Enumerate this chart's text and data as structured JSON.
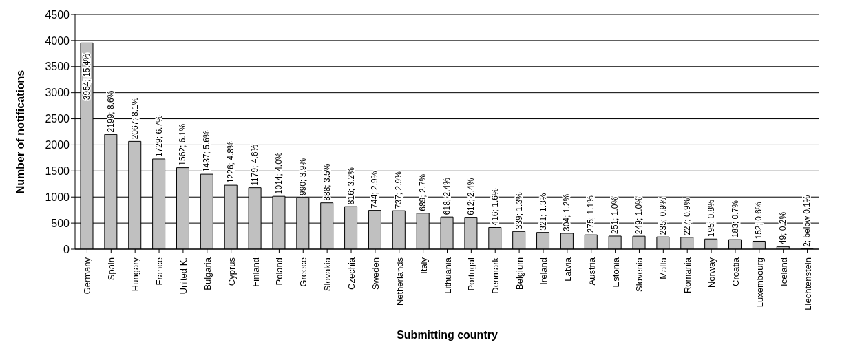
{
  "chart_data": {
    "type": "bar",
    "xlabel": "Submitting country",
    "ylabel": "Number of notifications",
    "categories": [
      "Germany",
      "Spain",
      "Hungary",
      "France",
      "United K.",
      "Bulgaria",
      "Cyprus",
      "Finland",
      "Poland",
      "Greece",
      "Slovakia",
      "Czechia",
      "Sweden",
      "Netherlands",
      "Italy",
      "Lithuania",
      "Portugal",
      "Denmark",
      "Belgium",
      "Ireland",
      "Latvia",
      "Austria",
      "Estonia",
      "Slovenia",
      "Malta",
      "Romania",
      "Norway",
      "Croatia",
      "Luxembourg",
      "Iceland",
      "Liechtenstein"
    ],
    "values": [
      3954,
      2199,
      2067,
      1729,
      1562,
      1437,
      1226,
      1179,
      1014,
      990,
      888,
      816,
      744,
      737,
      689,
      618,
      612,
      416,
      339,
      321,
      304,
      275,
      251,
      249,
      235,
      227,
      195,
      183,
      152,
      49,
      2
    ],
    "value_labels": [
      "3954; 15.4%",
      "2199; 8.6%",
      "2067; 8.1%",
      "1729; 6.7%",
      "1562; 6.1%",
      "1437; 5.6%",
      "1226; 4.8%",
      "1179; 4.6%",
      "1014; 4.0%",
      "990; 3.9%",
      "888; 3.5%",
      "816; 3.2%",
      "744; 2.9%",
      "737; 2.9%",
      "689; 2.7%",
      "618; 2.4%",
      "612; 2.4%",
      "416; 1.6%",
      "339; 1.3%",
      "321; 1.3%",
      "304; 1.2%",
      "275; 1.1%",
      "251; 1.0%",
      "249; 1.0%",
      "235; 0.9%",
      "227; 0.9%",
      "195; 0.8%",
      "183; 0.7%",
      "152; 0.6%",
      "49; 0.2%",
      "2; below 0.1%"
    ],
    "color": "#c0c0c0",
    "ylim": [
      0,
      4500
    ],
    "yticks": [
      0,
      500,
      1000,
      1500,
      2000,
      2500,
      3000,
      3500,
      4000,
      4500
    ],
    "grid": "y"
  }
}
